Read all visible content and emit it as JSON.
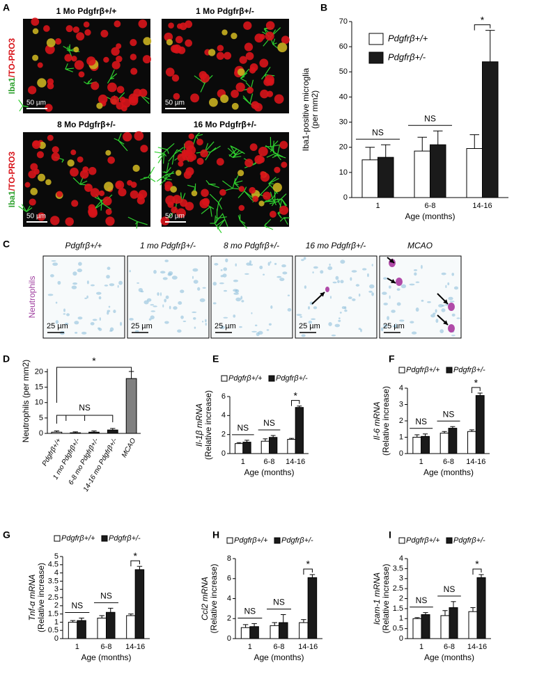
{
  "panel_a": {
    "label": "A",
    "titles": [
      "1 Mo Pdgfrβ+/+",
      "1 Mo Pdgfrβ+/-",
      "8 Mo Pdgfrβ+/-",
      "16 Mo Pdgfrβ+/-"
    ],
    "side_label": [
      "Iba1",
      "/TO-PRO3"
    ],
    "scale": "50 µm"
  },
  "panel_c": {
    "label": "C",
    "titles": [
      "Pdgfrβ+/+",
      "1 mo Pdgfrβ+/-",
      "8 mo Pdgfrβ+/-",
      "16 mo Pdgfrβ+/-",
      "MCAO"
    ],
    "side_label": "Neutrophils",
    "scale": "25 µm"
  },
  "chart_data": [
    {
      "type": "bar",
      "label": "B",
      "ylabel": [
        "Iba1-positive microglia",
        "(per mm2)"
      ],
      "xlabel": "Age (months)",
      "categories": [
        "1",
        "6-8",
        "14-16"
      ],
      "ylim": [
        0,
        70
      ],
      "yticks": [
        0,
        10,
        20,
        30,
        40,
        50,
        60,
        70
      ],
      "legend": "upper left",
      "series": [
        {
          "name": "Pdgfrβ+/+",
          "color": "#ffffff",
          "values": [
            15,
            18.5,
            19.5
          ],
          "errors": [
            5,
            5.5,
            5.5
          ]
        },
        {
          "name": "Pdgfrβ+/-",
          "color": "#1a1a1a",
          "values": [
            16,
            21,
            54
          ],
          "errors": [
            5,
            5.5,
            12.5
          ]
        }
      ],
      "annotations": [
        "NS",
        "NS",
        "*"
      ]
    },
    {
      "type": "bar",
      "label": "D",
      "ylabel": [
        "Neutrophils (per mm2)"
      ],
      "categories": [
        "Pdgfrβ+/+",
        "1 mo Pdgfrβ+/-",
        "6-8 mo Pdgfrβ+/-",
        "14-16 mo Pdgfrβ+/-",
        "MCAO"
      ],
      "ylim": [
        0,
        21
      ],
      "yticks": [
        0,
        5,
        10,
        15,
        20
      ],
      "values": [
        0.4,
        0.2,
        0.4,
        1.1,
        17.8
      ],
      "errors": [
        0.4,
        0.3,
        0.4,
        0.5,
        2.3
      ],
      "colors": [
        "#ffffff",
        "#1a1a1a",
        "#1a1a1a",
        "#1a1a1a",
        "#808080"
      ],
      "annotations": [
        "*",
        "NS"
      ]
    },
    {
      "type": "bar",
      "label": "E",
      "ylabel": [
        "Il-1β mRNA",
        "(Relative increase)"
      ],
      "xlabel": "Age (months)",
      "categories": [
        "1",
        "6-8",
        "14-16"
      ],
      "ylim": [
        0,
        6
      ],
      "yticks": [
        0,
        2,
        4,
        6
      ],
      "legend": "top",
      "series": [
        {
          "name": "Pdgfrβ+/+",
          "color": "#ffffff",
          "values": [
            1.05,
            1.3,
            1.5
          ],
          "errors": [
            0.1,
            0.25,
            0.1
          ]
        },
        {
          "name": "Pdgfrβ+/-",
          "color": "#1a1a1a",
          "values": [
            1.2,
            1.7,
            4.85
          ],
          "errors": [
            0.2,
            0.2,
            0.15
          ]
        }
      ],
      "annotations": [
        "NS",
        "NS",
        "*"
      ]
    },
    {
      "type": "bar",
      "label": "F",
      "ylabel": [
        "Il-6 mRNA",
        "(Relative increase)"
      ],
      "xlabel": "Age (months)",
      "categories": [
        "1",
        "6-8",
        "14-16"
      ],
      "ylim": [
        0,
        4
      ],
      "yticks": [
        0,
        1,
        2,
        3,
        4
      ],
      "legend": "top",
      "series": [
        {
          "name": "Pdgfrβ+/+",
          "color": "#ffffff",
          "values": [
            1.0,
            1.25,
            1.35
          ],
          "errors": [
            0.15,
            0.1,
            0.1
          ]
        },
        {
          "name": "Pdgfrβ+/-",
          "color": "#1a1a1a",
          "values": [
            1.05,
            1.55,
            3.55
          ],
          "errors": [
            0.15,
            0.1,
            0.15
          ]
        }
      ],
      "annotations": [
        "NS",
        "NS",
        "*"
      ]
    },
    {
      "type": "bar",
      "label": "G",
      "ylabel": [
        "Tnf-α mRNA",
        "(Relative increase)"
      ],
      "xlabel": "Age (months)",
      "categories": [
        "1",
        "6-8",
        "14-16"
      ],
      "ylim": [
        0,
        5
      ],
      "yticks": [
        0,
        0.5,
        1,
        1.5,
        2,
        2.5,
        3,
        3.5,
        4,
        4.5,
        5
      ],
      "legend": "top",
      "series": [
        {
          "name": "Pdgfrβ+/+",
          "color": "#ffffff",
          "values": [
            1.0,
            1.25,
            1.4
          ],
          "errors": [
            0.1,
            0.15,
            0.1
          ]
        },
        {
          "name": "Pdgfrβ+/-",
          "color": "#1a1a1a",
          "values": [
            1.1,
            1.6,
            4.2
          ],
          "errors": [
            0.15,
            0.25,
            0.2
          ]
        }
      ],
      "annotations": [
        "NS",
        "NS",
        "*"
      ]
    },
    {
      "type": "bar",
      "label": "H",
      "ylabel": [
        "Ccl2 mRNA",
        "(Relative increase)"
      ],
      "xlabel": "Age (months)",
      "categories": [
        "1",
        "6-8",
        "14-16"
      ],
      "ylim": [
        0,
        8
      ],
      "yticks": [
        0,
        2,
        4,
        6,
        8
      ],
      "legend": "top",
      "series": [
        {
          "name": "Pdgfrβ+/+",
          "color": "#ffffff",
          "values": [
            1.1,
            1.3,
            1.6
          ],
          "errors": [
            0.3,
            0.3,
            0.3
          ]
        },
        {
          "name": "Pdgfrβ+/-",
          "color": "#1a1a1a",
          "values": [
            1.2,
            1.6,
            6.1
          ],
          "errors": [
            0.3,
            0.8,
            0.3
          ]
        }
      ],
      "annotations": [
        "NS",
        "NS",
        "*"
      ]
    },
    {
      "type": "bar",
      "label": "I",
      "ylabel": [
        "Icam-1 mRNA",
        "(Relative increase)"
      ],
      "xlabel": "Age (months)",
      "categories": [
        "1",
        "6-8",
        "14-16"
      ],
      "ylim": [
        0,
        4
      ],
      "yticks": [
        0,
        0.5,
        1,
        1.5,
        2,
        2.5,
        3,
        3.5,
        4
      ],
      "legend": "top",
      "series": [
        {
          "name": "Pdgfrβ+/+",
          "color": "#ffffff",
          "values": [
            1.0,
            1.15,
            1.35
          ],
          "errors": [
            0.05,
            0.25,
            0.2
          ]
        },
        {
          "name": "Pdgfrβ+/-",
          "color": "#1a1a1a",
          "values": [
            1.2,
            1.55,
            3.05
          ],
          "errors": [
            0.1,
            0.3,
            0.15
          ]
        }
      ],
      "annotations": [
        "NS",
        "NS",
        "*"
      ]
    }
  ]
}
